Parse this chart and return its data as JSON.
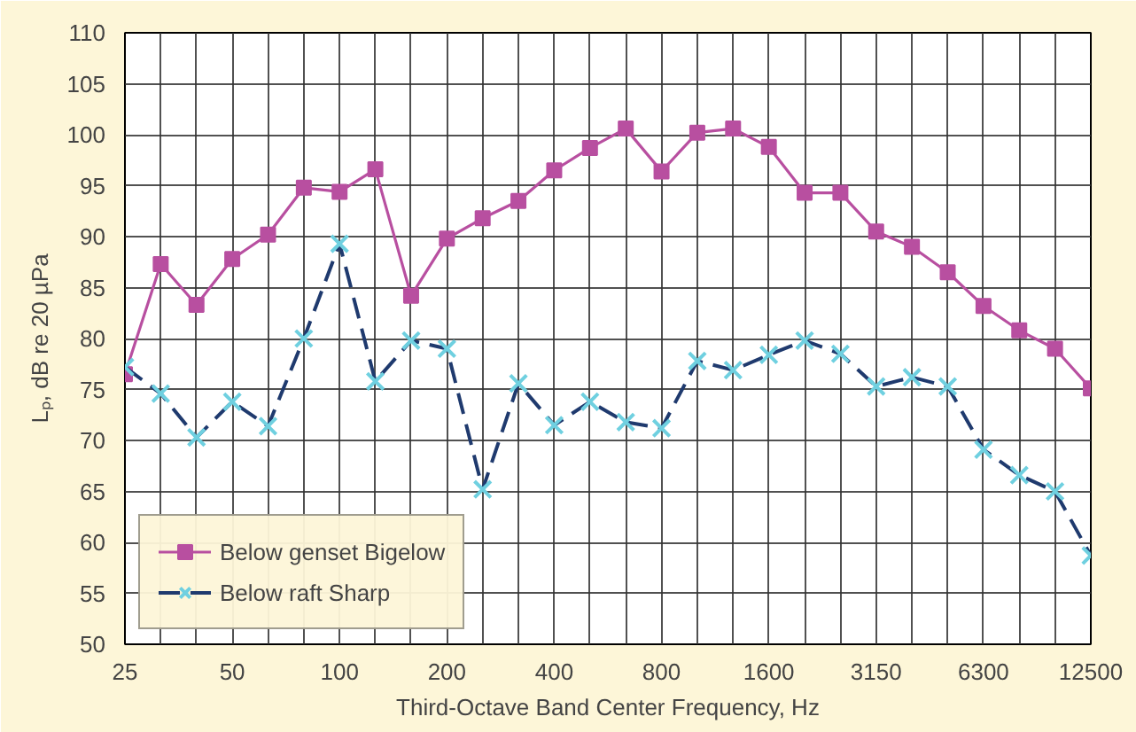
{
  "chart_data": {
    "type": "line",
    "xlabel": "Third-Octave Band Center Frequency, Hz",
    "ylabel": "Lₚ, dB re 20 µPa",
    "categories": [
      "25",
      null,
      null,
      "50",
      null,
      null,
      "100",
      null,
      null,
      "200",
      null,
      null,
      "400",
      null,
      null,
      "800",
      null,
      null,
      "1600",
      null,
      null,
      "3150",
      null,
      null,
      "6300",
      null,
      null,
      "12500"
    ],
    "ylim": [
      50,
      110
    ],
    "yticks": [
      50,
      55,
      60,
      65,
      70,
      75,
      80,
      85,
      90,
      95,
      100,
      105,
      110
    ],
    "grid": true,
    "legend": "bottom left",
    "series": [
      {
        "name": "Below genset Bigelow",
        "color": "#b84fa0",
        "marker": "square",
        "line_style": "solid",
        "values": [
          76.5,
          87.3,
          83.3,
          87.8,
          90.2,
          94.8,
          94.4,
          96.6,
          84.2,
          89.8,
          91.8,
          93.5,
          96.5,
          98.7,
          100.6,
          96.4,
          100.2,
          100.6,
          98.8,
          94.3,
          94.3,
          90.5,
          89.0,
          86.5,
          83.2,
          80.8,
          79.0,
          75.1
        ]
      },
      {
        "name": "Below raft Sharp",
        "color": "#1f3a6e",
        "marker": "cross",
        "line_style": "dashed",
        "values": [
          77.2,
          74.6,
          70.3,
          73.8,
          71.4,
          80.0,
          89.3,
          75.8,
          79.8,
          79.0,
          65.2,
          75.6,
          71.5,
          73.8,
          71.8,
          71.2,
          77.8,
          76.9,
          78.4,
          79.8,
          78.5,
          75.3,
          76.2,
          75.3,
          69.1,
          66.6,
          65.0,
          58.7
        ]
      }
    ]
  }
}
